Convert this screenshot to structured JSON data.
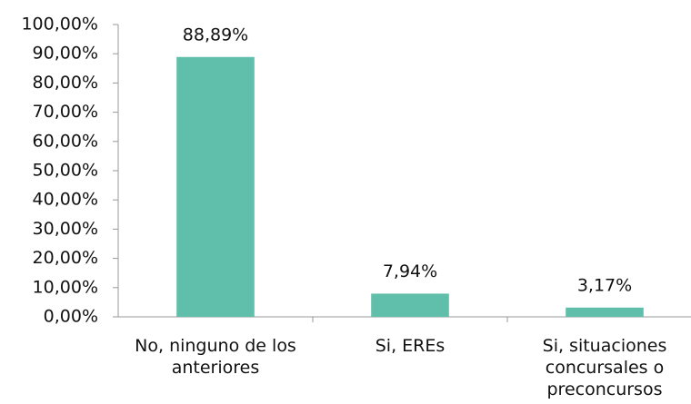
{
  "chart_data": {
    "type": "bar",
    "categories": [
      "No, ninguno de los anteriores",
      "Si, EREs",
      "Si, situaciones concursales o preconcursos"
    ],
    "values": [
      88.89,
      7.94,
      3.17
    ],
    "value_labels": [
      "88,89%",
      "7,94%",
      "3,17%"
    ],
    "color": "#5fbfaa",
    "ylim": [
      0,
      100
    ],
    "yticks": [
      {
        "value": 0,
        "label": "0,00%"
      },
      {
        "value": 10,
        "label": "10,00%"
      },
      {
        "value": 20,
        "label": "20,00%"
      },
      {
        "value": 30,
        "label": "30,00%"
      },
      {
        "value": 40,
        "label": "40,00%"
      },
      {
        "value": 50,
        "label": "50,00%"
      },
      {
        "value": 60,
        "label": "60,00%"
      },
      {
        "value": 70,
        "label": "70,00%"
      },
      {
        "value": 80,
        "label": "80,00%"
      },
      {
        "value": 90,
        "label": "90,00%"
      },
      {
        "value": 100,
        "label": "100,00%"
      }
    ],
    "grid": false
  }
}
